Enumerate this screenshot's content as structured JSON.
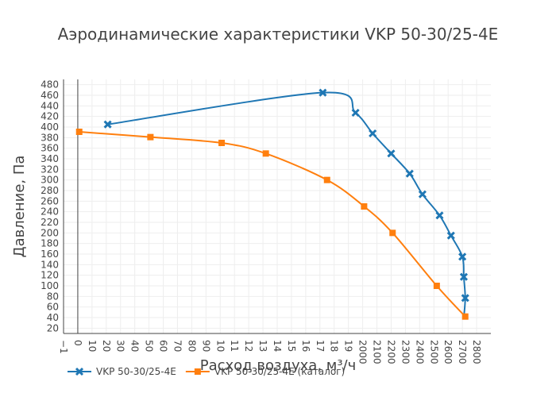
{
  "chart_data": {
    "type": "line",
    "title": "Аэродинамические характеристики VKP 50-30/25-4E",
    "xlabel": "Расход воздуха, м³/ч",
    "ylabel": "Давление, Па",
    "xlim": [
      -100,
      2900
    ],
    "ylim": [
      10,
      490
    ],
    "x_ticks": [
      -100,
      0,
      100,
      200,
      300,
      400,
      500,
      600,
      700,
      800,
      900,
      1000,
      1100,
      1200,
      1300,
      1400,
      1500,
      1600,
      1700,
      1800,
      1900,
      2000,
      2100,
      2200,
      2300,
      2400,
      2500,
      2600,
      2700,
      2800
    ],
    "x_tick_labels": [
      "−1",
      "0",
      "10",
      "20",
      "30",
      "40",
      "50",
      "60",
      "70",
      "80",
      "90",
      "10",
      "11",
      "12",
      "13",
      "14",
      "15",
      "16",
      "17",
      "18",
      "19",
      "2000",
      "2100",
      "2200",
      "2300",
      "2400",
      "2500",
      "2600",
      "2700",
      "2800"
    ],
    "y_ticks": [
      20,
      40,
      60,
      80,
      100,
      120,
      140,
      160,
      180,
      200,
      220,
      240,
      260,
      280,
      300,
      320,
      340,
      360,
      380,
      400,
      420,
      440,
      460,
      480
    ],
    "grid": true,
    "legend_position": "bottom-left",
    "series": [
      {
        "name": "VKP 50-30/25-4E",
        "color": "#1f77b4",
        "marker": "x",
        "x": [
          210,
          1720,
          1950,
          2070,
          2200,
          2330,
          2420,
          2540,
          2620,
          2700,
          2710,
          2720
        ],
        "y": [
          405,
          465,
          427,
          388,
          350,
          312,
          273,
          233,
          195,
          155,
          117,
          77
        ],
        "curve_end": {
          "x": 2710,
          "y": 40
        }
      },
      {
        "name": "VKP 50-30/25-4E (каталог)",
        "color": "#ff7f0e",
        "marker": "square",
        "x": [
          10,
          510,
          1010,
          1320,
          1750,
          2010,
          2210,
          2520,
          2720
        ],
        "y": [
          391,
          381,
          370,
          350,
          300,
          250,
          200,
          100,
          42
        ]
      }
    ]
  }
}
